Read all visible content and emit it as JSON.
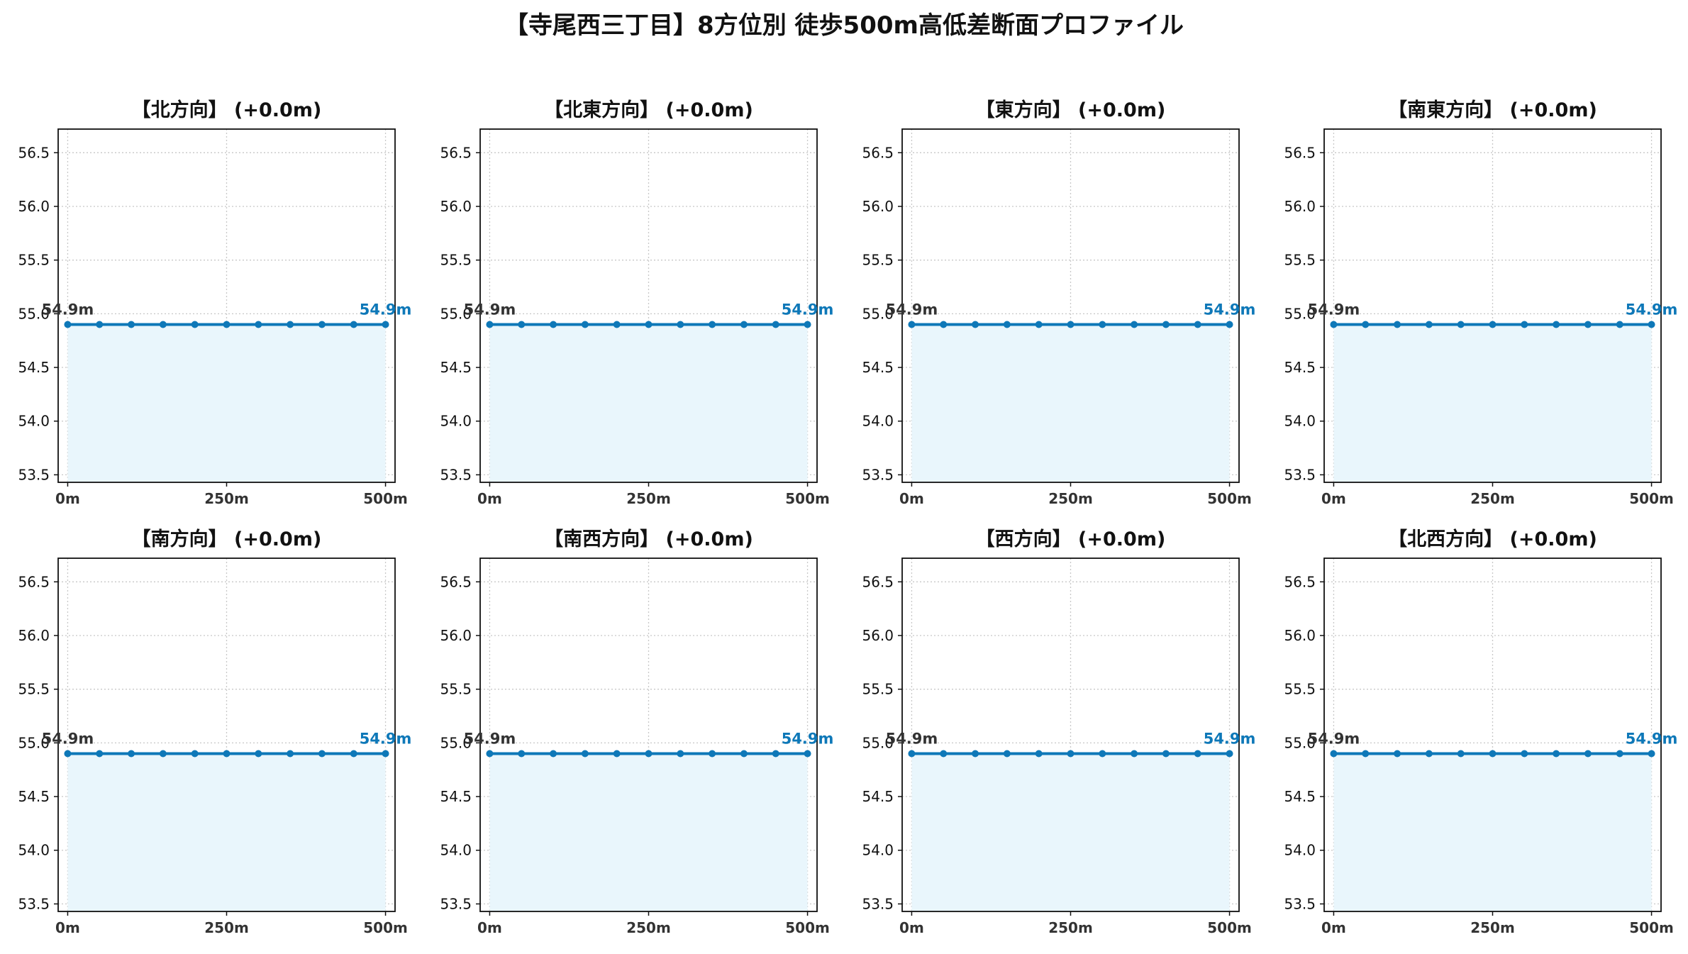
{
  "title": "【寺尾西三丁目】8方位別 徒歩500m高低差断面プロファイル",
  "colors": {
    "line": "#0e78b8",
    "fill": "#e9f6fc",
    "start_label": "#333333",
    "end_label": "#0e78b8",
    "grid": "#c8c8c8"
  },
  "chart_data": [
    {
      "type": "area",
      "title": "【北方向】 (+0.0m)",
      "x": [
        0,
        50,
        100,
        150,
        200,
        250,
        300,
        350,
        400,
        450,
        500
      ],
      "y": [
        54.9,
        54.9,
        54.9,
        54.9,
        54.9,
        54.9,
        54.9,
        54.9,
        54.9,
        54.9,
        54.9
      ],
      "xlim": [
        -15,
        515
      ],
      "ylim": [
        53.43,
        56.72
      ],
      "xticks": [
        0,
        250,
        500
      ],
      "xtick_labels": [
        "0m",
        "250m",
        "500m"
      ],
      "yticks": [
        53.5,
        54.0,
        54.5,
        55.0,
        55.5,
        56.0,
        56.5
      ],
      "ytick_labels": [
        "53.5",
        "54.0",
        "54.5",
        "55.0",
        "55.5",
        "56.0",
        "56.5"
      ],
      "start_label": "54.9m",
      "end_label": "54.9m",
      "grid": true
    },
    {
      "type": "area",
      "title": "【北東方向】 (+0.0m)",
      "x": [
        0,
        50,
        100,
        150,
        200,
        250,
        300,
        350,
        400,
        450,
        500
      ],
      "y": [
        54.9,
        54.9,
        54.9,
        54.9,
        54.9,
        54.9,
        54.9,
        54.9,
        54.9,
        54.9,
        54.9
      ],
      "xlim": [
        -15,
        515
      ],
      "ylim": [
        53.43,
        56.72
      ],
      "xticks": [
        0,
        250,
        500
      ],
      "xtick_labels": [
        "0m",
        "250m",
        "500m"
      ],
      "yticks": [
        53.5,
        54.0,
        54.5,
        55.0,
        55.5,
        56.0,
        56.5
      ],
      "ytick_labels": [
        "53.5",
        "54.0",
        "54.5",
        "55.0",
        "55.5",
        "56.0",
        "56.5"
      ],
      "start_label": "54.9m",
      "end_label": "54.9m",
      "grid": true
    },
    {
      "type": "area",
      "title": "【東方向】 (+0.0m)",
      "x": [
        0,
        50,
        100,
        150,
        200,
        250,
        300,
        350,
        400,
        450,
        500
      ],
      "y": [
        54.9,
        54.9,
        54.9,
        54.9,
        54.9,
        54.9,
        54.9,
        54.9,
        54.9,
        54.9,
        54.9
      ],
      "xlim": [
        -15,
        515
      ],
      "ylim": [
        53.43,
        56.72
      ],
      "xticks": [
        0,
        250,
        500
      ],
      "xtick_labels": [
        "0m",
        "250m",
        "500m"
      ],
      "yticks": [
        53.5,
        54.0,
        54.5,
        55.0,
        55.5,
        56.0,
        56.5
      ],
      "ytick_labels": [
        "53.5",
        "54.0",
        "54.5",
        "55.0",
        "55.5",
        "56.0",
        "56.5"
      ],
      "start_label": "54.9m",
      "end_label": "54.9m",
      "grid": true
    },
    {
      "type": "area",
      "title": "【南東方向】 (+0.0m)",
      "x": [
        0,
        50,
        100,
        150,
        200,
        250,
        300,
        350,
        400,
        450,
        500
      ],
      "y": [
        54.9,
        54.9,
        54.9,
        54.9,
        54.9,
        54.9,
        54.9,
        54.9,
        54.9,
        54.9,
        54.9
      ],
      "xlim": [
        -15,
        515
      ],
      "ylim": [
        53.43,
        56.72
      ],
      "xticks": [
        0,
        250,
        500
      ],
      "xtick_labels": [
        "0m",
        "250m",
        "500m"
      ],
      "yticks": [
        53.5,
        54.0,
        54.5,
        55.0,
        55.5,
        56.0,
        56.5
      ],
      "ytick_labels": [
        "53.5",
        "54.0",
        "54.5",
        "55.0",
        "55.5",
        "56.0",
        "56.5"
      ],
      "start_label": "54.9m",
      "end_label": "54.9m",
      "grid": true
    },
    {
      "type": "area",
      "title": "【南方向】 (+0.0m)",
      "x": [
        0,
        50,
        100,
        150,
        200,
        250,
        300,
        350,
        400,
        450,
        500
      ],
      "y": [
        54.9,
        54.9,
        54.9,
        54.9,
        54.9,
        54.9,
        54.9,
        54.9,
        54.9,
        54.9,
        54.9
      ],
      "xlim": [
        -15,
        515
      ],
      "ylim": [
        53.43,
        56.72
      ],
      "xticks": [
        0,
        250,
        500
      ],
      "xtick_labels": [
        "0m",
        "250m",
        "500m"
      ],
      "yticks": [
        53.5,
        54.0,
        54.5,
        55.0,
        55.5,
        56.0,
        56.5
      ],
      "ytick_labels": [
        "53.5",
        "54.0",
        "54.5",
        "55.0",
        "55.5",
        "56.0",
        "56.5"
      ],
      "start_label": "54.9m",
      "end_label": "54.9m",
      "grid": true
    },
    {
      "type": "area",
      "title": "【南西方向】 (+0.0m)",
      "x": [
        0,
        50,
        100,
        150,
        200,
        250,
        300,
        350,
        400,
        450,
        500
      ],
      "y": [
        54.9,
        54.9,
        54.9,
        54.9,
        54.9,
        54.9,
        54.9,
        54.9,
        54.9,
        54.9,
        54.9
      ],
      "xlim": [
        -15,
        515
      ],
      "ylim": [
        53.43,
        56.72
      ],
      "xticks": [
        0,
        250,
        500
      ],
      "xtick_labels": [
        "0m",
        "250m",
        "500m"
      ],
      "yticks": [
        53.5,
        54.0,
        54.5,
        55.0,
        55.5,
        56.0,
        56.5
      ],
      "ytick_labels": [
        "53.5",
        "54.0",
        "54.5",
        "55.0",
        "55.5",
        "56.0",
        "56.5"
      ],
      "start_label": "54.9m",
      "end_label": "54.9m",
      "grid": true
    },
    {
      "type": "area",
      "title": "【西方向】 (+0.0m)",
      "x": [
        0,
        50,
        100,
        150,
        200,
        250,
        300,
        350,
        400,
        450,
        500
      ],
      "y": [
        54.9,
        54.9,
        54.9,
        54.9,
        54.9,
        54.9,
        54.9,
        54.9,
        54.9,
        54.9,
        54.9
      ],
      "xlim": [
        -15,
        515
      ],
      "ylim": [
        53.43,
        56.72
      ],
      "xticks": [
        0,
        250,
        500
      ],
      "xtick_labels": [
        "0m",
        "250m",
        "500m"
      ],
      "yticks": [
        53.5,
        54.0,
        54.5,
        55.0,
        55.5,
        56.0,
        56.5
      ],
      "ytick_labels": [
        "53.5",
        "54.0",
        "54.5",
        "55.0",
        "55.5",
        "56.0",
        "56.5"
      ],
      "start_label": "54.9m",
      "end_label": "54.9m",
      "grid": true
    },
    {
      "type": "area",
      "title": "【北西方向】 (+0.0m)",
      "x": [
        0,
        50,
        100,
        150,
        200,
        250,
        300,
        350,
        400,
        450,
        500
      ],
      "y": [
        54.9,
        54.9,
        54.9,
        54.9,
        54.9,
        54.9,
        54.9,
        54.9,
        54.9,
        54.9,
        54.9
      ],
      "xlim": [
        -15,
        515
      ],
      "ylim": [
        53.43,
        56.72
      ],
      "xticks": [
        0,
        250,
        500
      ],
      "xtick_labels": [
        "0m",
        "250m",
        "500m"
      ],
      "yticks": [
        53.5,
        54.0,
        54.5,
        55.0,
        55.5,
        56.0,
        56.5
      ],
      "ytick_labels": [
        "53.5",
        "54.0",
        "54.5",
        "55.0",
        "55.5",
        "56.0",
        "56.5"
      ],
      "start_label": "54.9m",
      "end_label": "54.9m",
      "grid": true
    }
  ]
}
